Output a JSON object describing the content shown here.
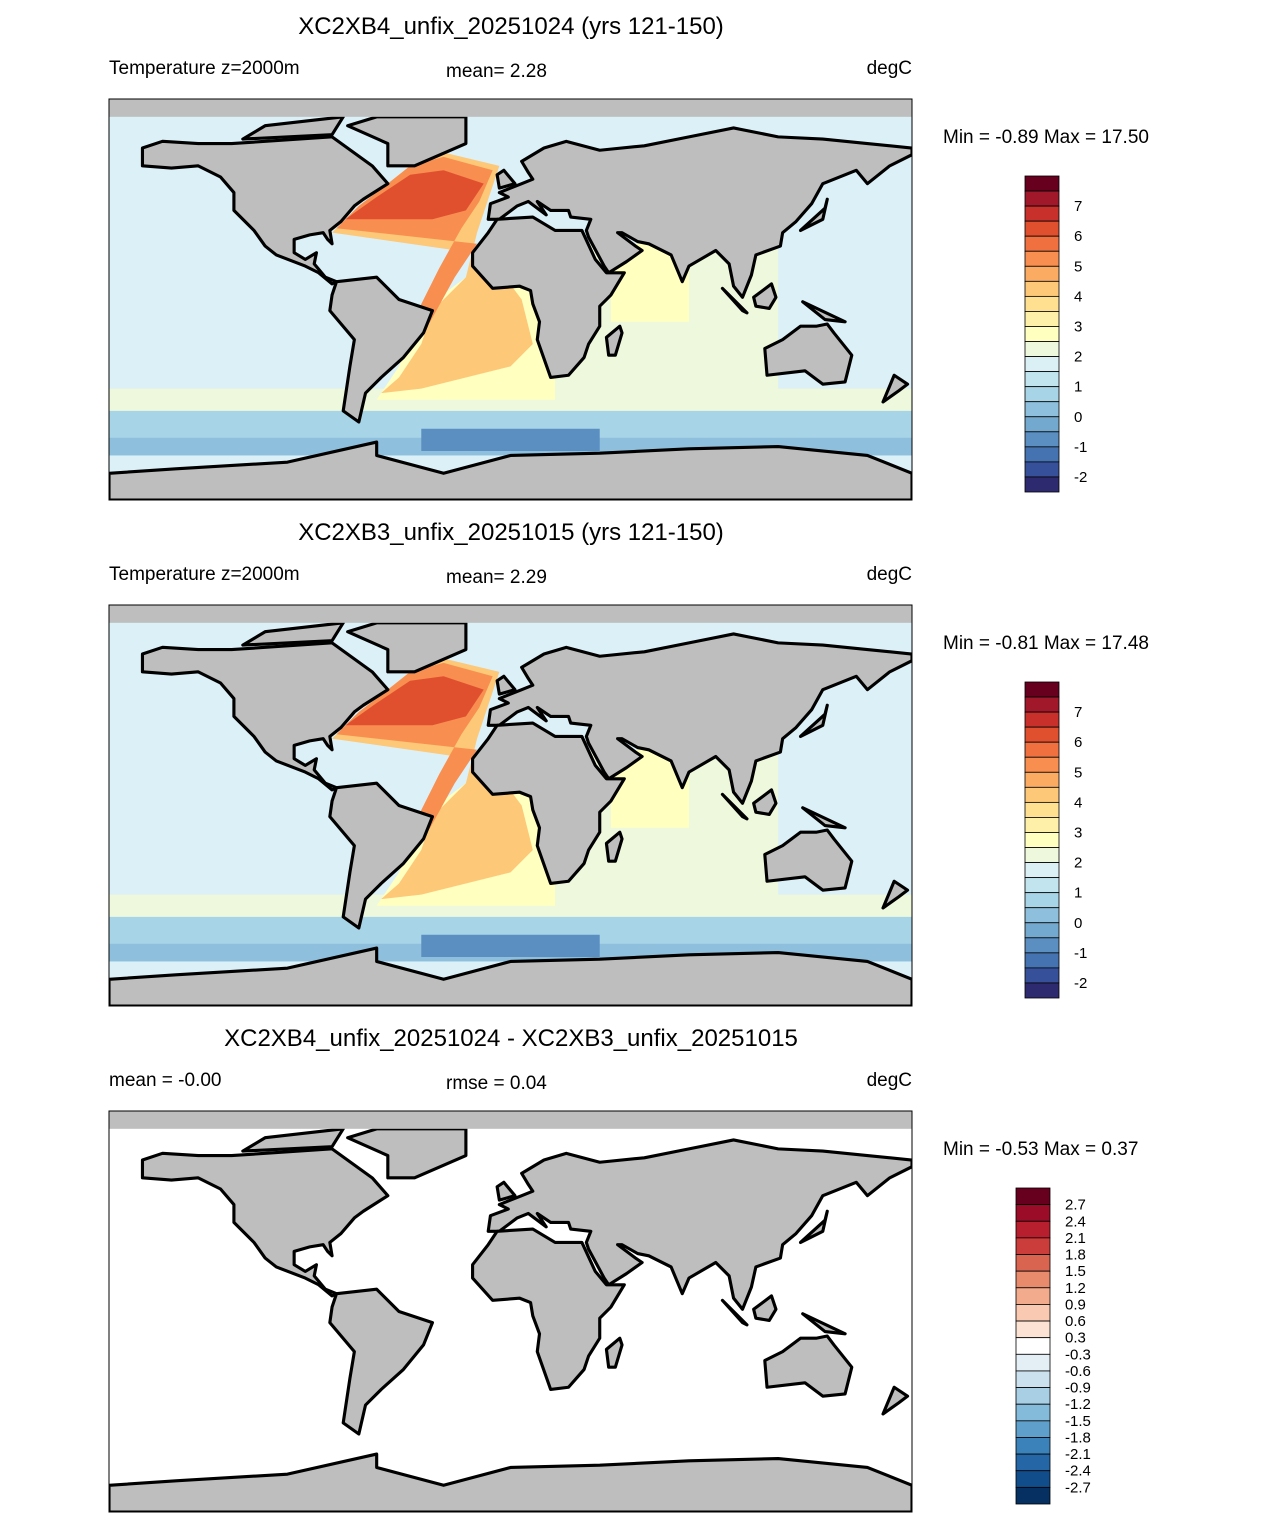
{
  "panels": [
    {
      "title": "XC2XB4_unfix_20251024 (yrs 121-150)",
      "left_label": "Temperature z=2000m",
      "center_label": "mean=   2.28",
      "right_label": "degC",
      "min_max": "Min =  -0.89 Max =  17.50",
      "colorbar": {
        "levels": [
          7,
          6,
          5,
          4,
          3,
          2,
          1,
          0,
          -1,
          -2
        ],
        "colors": [
          "#67001f",
          "#a0182a",
          "#c8302b",
          "#e0502f",
          "#f07040",
          "#f88f50",
          "#fcac62",
          "#fdc878",
          "#fee090",
          "#fef0a8",
          "#ffffc0",
          "#eef8dc",
          "#dbf0f5",
          "#c2e4ef",
          "#a7d4e6",
          "#8ec0dd",
          "#74a9cf",
          "#5b8fc2",
          "#4573b2",
          "#37509a",
          "#2e2a70"
        ]
      }
    },
    {
      "title": "XC2XB3_unfix_20251015 (yrs 121-150)",
      "left_label": "Temperature z=2000m",
      "center_label": "mean=   2.29",
      "right_label": "degC",
      "min_max": "Min =  -0.81 Max =  17.48",
      "colorbar": {
        "levels": [
          7,
          6,
          5,
          4,
          3,
          2,
          1,
          0,
          -1,
          -2
        ],
        "colors": [
          "#67001f",
          "#a0182a",
          "#c8302b",
          "#e0502f",
          "#f07040",
          "#f88f50",
          "#fcac62",
          "#fdc878",
          "#fee090",
          "#fef0a8",
          "#ffffc0",
          "#eef8dc",
          "#dbf0f5",
          "#c2e4ef",
          "#a7d4e6",
          "#8ec0dd",
          "#74a9cf",
          "#5b8fc2",
          "#4573b2",
          "#37509a",
          "#2e2a70"
        ]
      }
    },
    {
      "title": "XC2XB4_unfix_20251024 - XC2XB3_unfix_20251015",
      "left_label": "mean =  -0.00",
      "center_label": "rmse =   0.04",
      "right_label": "degC",
      "min_max": "Min =  -0.53 Max =   0.37",
      "colorbar": {
        "levels": [
          2.7,
          2.4,
          2.1,
          1.8,
          1.5,
          1.2,
          0.9,
          0.6,
          0.3,
          -0.3,
          -0.6,
          -0.9,
          -1.2,
          -1.5,
          -1.8,
          -2.1,
          -2.4,
          -2.7
        ],
        "colors": [
          "#67001f",
          "#9a0c27",
          "#b71f2f",
          "#cb3d3b",
          "#d9644f",
          "#e88a6c",
          "#f3ab8e",
          "#f9c9b1",
          "#fbe2d3",
          "#ffffff",
          "#e3eef5",
          "#cbe1ee",
          "#a9cfe5",
          "#85bbda",
          "#5e9fcb",
          "#3b82bb",
          "#2466a6",
          "#114d8b",
          "#053061"
        ]
      }
    }
  ]
}
